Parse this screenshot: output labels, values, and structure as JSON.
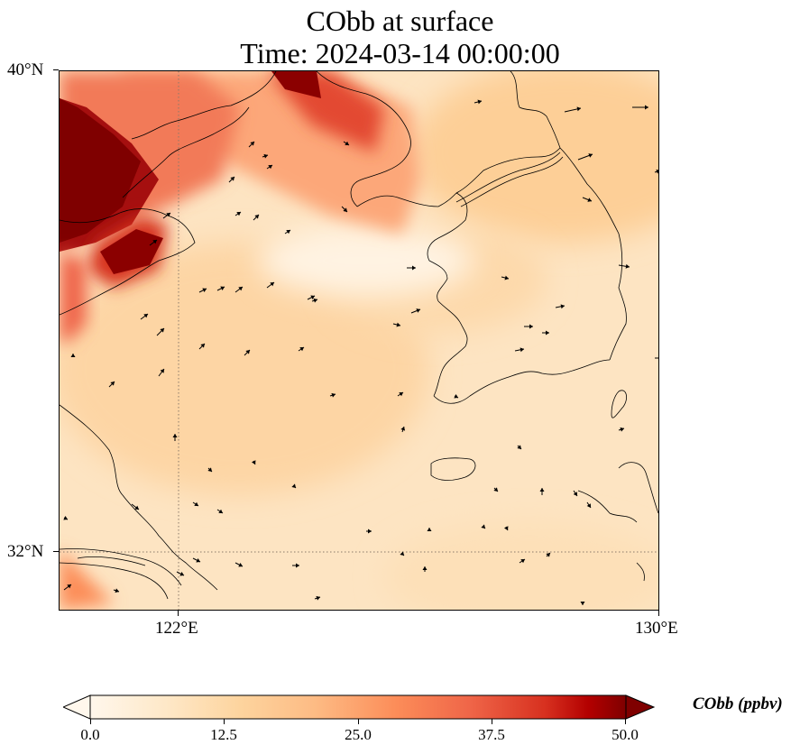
{
  "title": {
    "line1": "CObb at surface",
    "line2": "Time: 2024-03-14 00:00:00"
  },
  "axes": {
    "lat_ticks": [
      "40°N",
      "32°N"
    ],
    "lon_ticks": [
      "122°E",
      "130°E"
    ]
  },
  "map": {
    "variable": "CObb",
    "projection": "lat-lon",
    "extent_lon": [
      120,
      130
    ],
    "extent_lat": [
      31,
      40
    ],
    "gridlines": "dotted at 122°E and 32°N",
    "overlay": "wind vectors",
    "colormap": "OrRd",
    "colors": {
      "low": "#fff7ec",
      "mid": "#fdc98c",
      "high": "#7f0000",
      "gridline": "#8a7a6a"
    }
  },
  "colorbar": {
    "label": "CObb (ppbv)",
    "ticks": [
      "0.0",
      "12.5",
      "25.0",
      "37.5",
      "50.0"
    ],
    "min": 0,
    "max": 50,
    "extend": "both"
  }
}
